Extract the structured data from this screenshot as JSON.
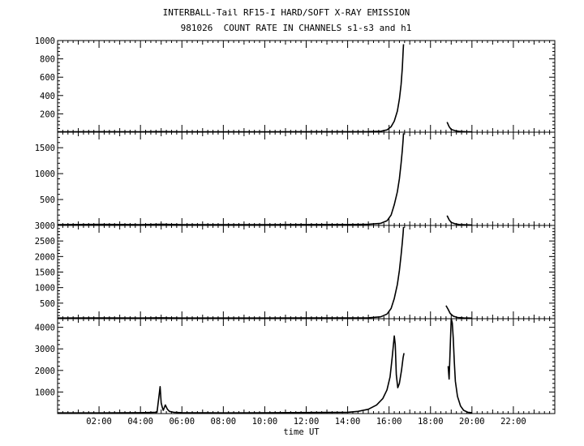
{
  "chart_data": {
    "type": "line",
    "title": "INTERBALL-Tail RF15-I HARD/SOFT X-RAY EMISSION",
    "subtitle": "981026  COUNT RATE IN CHANNELS s1-s3 and h1",
    "xlabel": "time UT",
    "x_unit": "hours UT",
    "xlim": [
      0,
      24
    ],
    "x_ticks": [
      "02:00",
      "04:00",
      "06:00",
      "08:00",
      "10:00",
      "12:00",
      "14:00",
      "16:00",
      "18:00",
      "20:00",
      "22:00"
    ],
    "x_tick_values": [
      2,
      4,
      6,
      8,
      10,
      12,
      14,
      16,
      18,
      20,
      22
    ],
    "panels": [
      {
        "ylim": [
          0,
          1000
        ],
        "y_ticks": [
          200,
          400,
          600,
          800,
          1000
        ],
        "y_tick_labels": [
          "200",
          "400",
          "600",
          "800",
          "1000"
        ],
        "segments": [
          {
            "x": [
              0.0,
              2.0,
              4.0,
              5.0,
              6.0,
              8.0,
              10.0,
              12.0,
              14.0,
              15.0,
              15.6,
              15.9,
              16.1,
              16.25,
              16.4,
              16.5,
              16.58,
              16.64,
              16.68,
              16.7
            ],
            "y": [
              4,
              5,
              4,
              6,
              4,
              4,
              4,
              5,
              5,
              6,
              10,
              25,
              60,
              120,
              230,
              360,
              520,
              700,
              880,
              960
            ]
          },
          {
            "x": [
              18.8,
              18.9,
              19.0,
              19.2,
              19.4,
              19.7,
              20.0
            ],
            "y": [
              110,
              60,
              30,
              15,
              8,
              5,
              4
            ]
          }
        ]
      },
      {
        "ylim": [
          0,
          1800
        ],
        "y_ticks": [
          500,
          1000,
          1500
        ],
        "y_tick_labels": [
          "500",
          "1000",
          "1500"
        ],
        "segments": [
          {
            "x": [
              0.0,
              2.0,
              4.0,
              5.0,
              6.0,
              8.0,
              10.0,
              12.0,
              14.0,
              15.0,
              15.6,
              15.9,
              16.1,
              16.25,
              16.4,
              16.5,
              16.58,
              16.64,
              16.68,
              16.7
            ],
            "y": [
              15,
              20,
              15,
              22,
              15,
              15,
              15,
              18,
              18,
              22,
              40,
              90,
              200,
              400,
              650,
              900,
              1200,
              1450,
              1650,
              1780
            ]
          },
          {
            "x": [
              18.8,
              18.9,
              19.0,
              19.2,
              19.4,
              19.7,
              20.0
            ],
            "y": [
              190,
              110,
              60,
              30,
              18,
              12,
              10
            ]
          }
        ]
      },
      {
        "ylim": [
          0,
          3000
        ],
        "y_ticks": [
          500,
          1000,
          1500,
          2000,
          2500,
          3000
        ],
        "y_tick_labels": [
          "500",
          "1000",
          "1500",
          "2000",
          "2500",
          "3000"
        ],
        "segments": [
          {
            "x": [
              0.0,
              2.0,
              4.0,
              5.0,
              6.0,
              8.0,
              10.0,
              12.0,
              14.0,
              15.0,
              15.6,
              15.9,
              16.1,
              16.25,
              16.4,
              16.5,
              16.58,
              16.64,
              16.68,
              16.7
            ],
            "y": [
              20,
              25,
              20,
              30,
              20,
              20,
              20,
              25,
              25,
              30,
              60,
              150,
              330,
              650,
              1100,
              1550,
              2050,
              2450,
              2750,
              2950
            ]
          },
          {
            "x": [
              18.75,
              18.85,
              18.95,
              19.1,
              19.3,
              19.6,
              20.0
            ],
            "y": [
              420,
              300,
              170,
              80,
              40,
              25,
              18
            ]
          }
        ]
      },
      {
        "ylim": [
          0,
          4400
        ],
        "y_ticks": [
          1000,
          2000,
          3000,
          4000
        ],
        "y_tick_labels": [
          "1000",
          "2000",
          "3000",
          "4000"
        ],
        "segments": [
          {
            "x": [
              0.0,
              2.0,
              4.0,
              4.8,
              4.95,
              5.0,
              5.05,
              5.1,
              5.2,
              5.3,
              5.4,
              5.6,
              6.0,
              8.0,
              10.0,
              12.0,
              14.0,
              14.5,
              15.0,
              15.4,
              15.7,
              15.9,
              16.05,
              16.15,
              16.25,
              16.3,
              16.35,
              16.42,
              16.5,
              16.6,
              16.68,
              16.72
            ],
            "y": [
              30,
              30,
              40,
              60,
              1250,
              500,
              300,
              150,
              400,
              200,
              100,
              60,
              40,
              30,
              35,
              50,
              60,
              100,
              200,
              400,
              700,
              1100,
              1700,
              2600,
              3600,
              3200,
              1800,
              1200,
              1400,
              2000,
              2600,
              2800
            ]
          },
          {
            "x": [
              18.85,
              18.9,
              19.0,
              19.05,
              19.1,
              19.15,
              19.2,
              19.3,
              19.45,
              19.6,
              19.8,
              20.0
            ],
            "y": [
              2200,
              1600,
              4400,
              4200,
              3500,
              2400,
              1500,
              800,
              350,
              150,
              60,
              40
            ]
          }
        ]
      }
    ]
  }
}
